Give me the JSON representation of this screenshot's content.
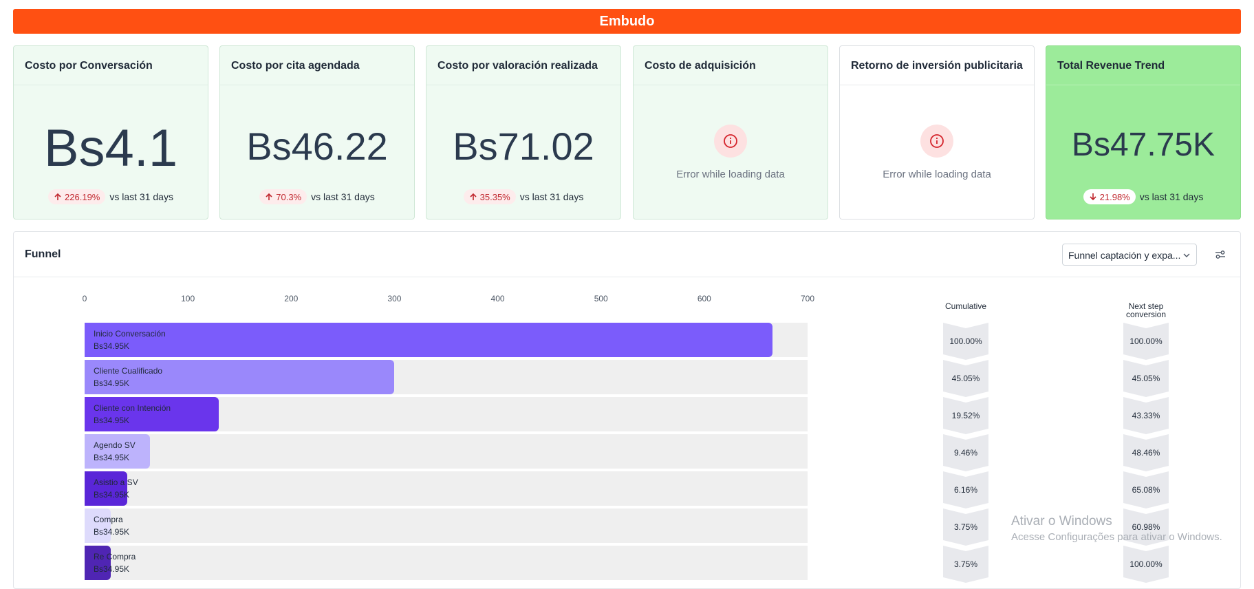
{
  "banner": {
    "title": "Embudo"
  },
  "kpis": [
    {
      "title": "Costo por Conversación",
      "value": "Bs4.1",
      "delta": "226.19%",
      "direction": "up",
      "compare": "vs last 31 days"
    },
    {
      "title": "Costo por cita agendada",
      "value": "Bs46.22",
      "delta": "70.3%",
      "direction": "up",
      "compare": "vs last 31 days"
    },
    {
      "title": "Costo por valoración realizada",
      "value": "Bs71.02",
      "delta": "35.35%",
      "direction": "up",
      "compare": "vs last 31 days"
    },
    {
      "title": "Costo de adquisición",
      "error": "Error while loading data"
    },
    {
      "title": "Retorno de inversión publicitaria",
      "error": "Error while loading data"
    },
    {
      "title": "Total Revenue Trend",
      "value": "Bs47.75K",
      "delta": "21.98%",
      "direction": "down",
      "compare": "vs last 31 days"
    }
  ],
  "funnel": {
    "title": "Funnel",
    "selector": {
      "selected": "Funnel captación y expa..."
    },
    "cumulative_header": "Cumulative",
    "next_step_header_line1": "Next step",
    "next_step_header_line2": "conversion",
    "colors": {
      "accent": "#ff5012",
      "bars": [
        "#7b5cfb",
        "#9a88fb",
        "#6a35ec",
        "#bdb3fc",
        "#5a26d8",
        "#dedbfc",
        "#4f25b3"
      ]
    }
  },
  "chart_data": {
    "type": "bar",
    "orientation": "horizontal",
    "x_ticks": [
      "0",
      "100",
      "200",
      "300",
      "400",
      "500",
      "600",
      "700"
    ],
    "xlim": [
      0,
      700
    ],
    "categories": [
      "Inicio Conversación",
      "Cliente Cualificado",
      "Cliente con Intención",
      "Agendo SV",
      "Asistio a SV",
      "Compra",
      "Re Compra"
    ],
    "values": [
      666,
      300,
      130,
      63,
      41,
      25,
      25
    ],
    "bar_labels": [
      "Bs34.95K",
      "Bs34.95K",
      "Bs34.95K",
      "Bs34.95K",
      "Bs34.95K",
      "Bs34.95K",
      "Bs34.95K"
    ],
    "cumulative": [
      "100.00%",
      "45.05%",
      "19.52%",
      "9.46%",
      "6.16%",
      "3.75%",
      "3.75%"
    ],
    "next_step_conversion": [
      "100.00%",
      "45.05%",
      "43.33%",
      "48.46%",
      "65.08%",
      "60.98%",
      "100.00%"
    ]
  },
  "watermark": {
    "line1": "Ativar o Windows",
    "line2": "Acesse Configurações para ativar o Windows."
  }
}
